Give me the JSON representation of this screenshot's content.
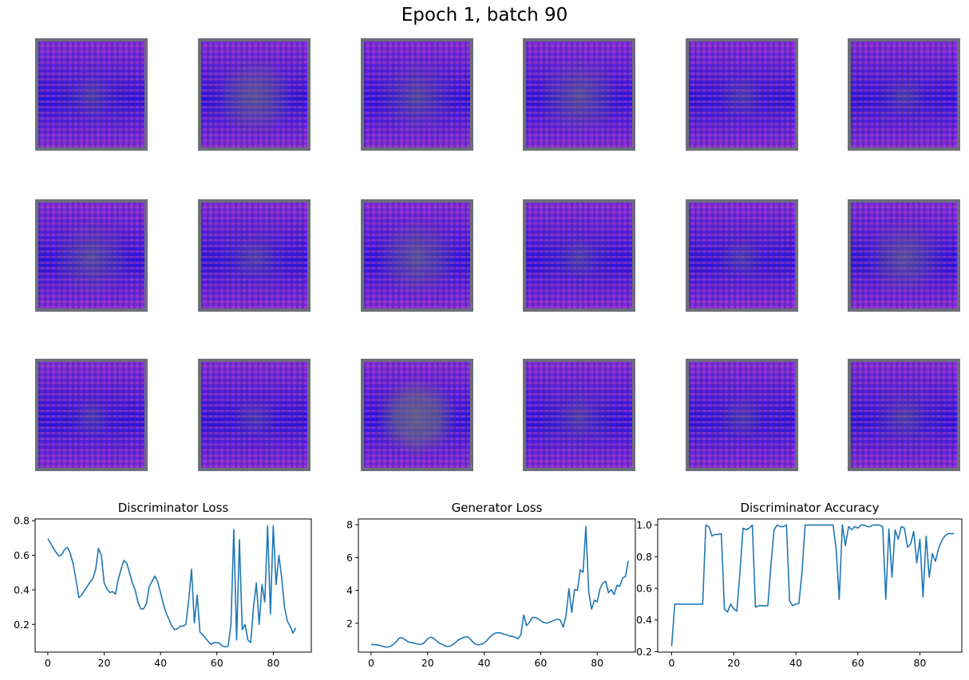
{
  "figure": {
    "title": "Epoch 1, batch 90"
  },
  "sample_grid": {
    "rows": 3,
    "cols": 6,
    "colors": {
      "frame": "#6b6f7a",
      "blob": "#6a6e7c",
      "violet": "#8a2be2",
      "blue": "#2a10e8",
      "magenta": "#b040c8",
      "dark": "#1e2a7a"
    },
    "center_blob_strength": [
      [
        0.15,
        0.55,
        0.35,
        0.45,
        0.1,
        0.1
      ],
      [
        0.4,
        0.2,
        0.5,
        0.15,
        0.1,
        0.45
      ],
      [
        0.05,
        0.05,
        0.75,
        0.2,
        0.1,
        0.2
      ]
    ]
  },
  "chart_data": [
    {
      "type": "line",
      "title": "Discriminator Loss",
      "xlabel": "",
      "ylabel": "",
      "xlim": [
        -4.5,
        93.5
      ],
      "ylim": [
        0.04,
        0.81
      ],
      "xticks": [
        0,
        20,
        40,
        60,
        80
      ],
      "yticks": [
        0.2,
        0.4,
        0.6,
        0.8
      ],
      "yticklabels": [
        "0.2",
        "0.4",
        "0.6",
        "0.8"
      ],
      "grid": false,
      "color": "#1f77b4",
      "y": [
        0.695,
        0.67,
        0.64,
        0.615,
        0.595,
        0.605,
        0.635,
        0.645,
        0.61,
        0.55,
        0.46,
        0.355,
        0.37,
        0.395,
        0.42,
        0.445,
        0.465,
        0.52,
        0.64,
        0.6,
        0.44,
        0.405,
        0.385,
        0.39,
        0.375,
        0.46,
        0.52,
        0.57,
        0.555,
        0.5,
        0.44,
        0.4,
        0.33,
        0.29,
        0.29,
        0.32,
        0.42,
        0.45,
        0.48,
        0.445,
        0.385,
        0.32,
        0.265,
        0.23,
        0.19,
        0.17,
        0.175,
        0.19,
        0.19,
        0.2,
        0.34,
        0.52,
        0.21,
        0.37,
        0.155,
        0.14,
        0.12,
        0.1,
        0.085,
        0.095,
        0.095,
        0.09,
        0.075,
        0.07,
        0.075,
        0.2,
        0.75,
        0.11,
        0.69,
        0.17,
        0.2,
        0.11,
        0.095,
        0.3,
        0.44,
        0.2,
        0.43,
        0.33,
        0.77,
        0.26,
        0.77,
        0.43,
        0.6,
        0.47,
        0.3,
        0.22,
        0.19,
        0.15,
        0.18
      ]
    },
    {
      "type": "line",
      "title": "Generator Loss",
      "xlabel": "",
      "ylabel": "",
      "xlim": [
        -4.5,
        93.5
      ],
      "ylim": [
        0.24,
        8.35
      ],
      "xticks": [
        0,
        20,
        40,
        60,
        80
      ],
      "yticks": [
        2,
        4,
        6,
        8
      ],
      "yticklabels": [
        "2",
        "4",
        "6",
        "8"
      ],
      "grid": false,
      "color": "#1f77b4",
      "y": [
        0.7,
        0.7,
        0.68,
        0.65,
        0.6,
        0.55,
        0.55,
        0.6,
        0.72,
        0.9,
        1.1,
        1.12,
        1.0,
        0.88,
        0.82,
        0.8,
        0.75,
        0.72,
        0.72,
        0.85,
        1.05,
        1.15,
        1.1,
        0.95,
        0.8,
        0.72,
        0.62,
        0.58,
        0.6,
        0.7,
        0.85,
        1.0,
        1.08,
        1.15,
        1.18,
        1.05,
        0.85,
        0.72,
        0.68,
        0.72,
        0.8,
        0.95,
        1.15,
        1.3,
        1.4,
        1.42,
        1.4,
        1.32,
        1.3,
        1.22,
        1.2,
        1.15,
        1.05,
        1.3,
        2.5,
        1.85,
        2.05,
        2.35,
        2.35,
        2.28,
        2.15,
        2.05,
        2.0,
        2.05,
        2.12,
        2.2,
        2.25,
        2.18,
        1.75,
        2.5,
        4.1,
        2.65,
        4.05,
        4.0,
        5.25,
        5.1,
        7.9,
        3.9,
        2.85,
        3.4,
        3.3,
        4.1,
        4.45,
        4.55,
        3.85,
        4.05,
        3.75,
        4.3,
        4.25,
        4.75,
        4.85,
        5.8
      ]
    },
    {
      "type": "line",
      "title": "Discriminator Accuracy",
      "xlabel": "",
      "ylabel": "",
      "xlim": [
        -4.5,
        93.5
      ],
      "ylim": [
        0.197,
        1.038
      ],
      "xticks": [
        0,
        20,
        40,
        60,
        80
      ],
      "yticks": [
        0.2,
        0.4,
        0.6,
        0.8,
        1.0
      ],
      "yticklabels": [
        "0.2",
        "0.4",
        "0.6",
        "0.8",
        "1.0"
      ],
      "grid": false,
      "color": "#1f77b4",
      "y": [
        0.235,
        0.5,
        0.5,
        0.5,
        0.5,
        0.5,
        0.5,
        0.5,
        0.5,
        0.5,
        0.5,
        1.0,
        0.99,
        0.93,
        0.94,
        0.94,
        0.945,
        0.47,
        0.45,
        0.5,
        0.47,
        0.455,
        0.7,
        0.98,
        0.97,
        0.98,
        1.0,
        0.48,
        0.49,
        0.49,
        0.49,
        0.49,
        0.75,
        0.97,
        1.0,
        0.99,
        0.99,
        1.0,
        0.52,
        0.49,
        0.5,
        0.505,
        0.7,
        1.0,
        1.0,
        1.0,
        1.0,
        1.0,
        1.0,
        1.0,
        1.0,
        1.0,
        1.0,
        0.85,
        0.53,
        1.0,
        0.87,
        0.99,
        0.97,
        0.99,
        0.98,
        1.0,
        1.0,
        0.99,
        0.99,
        1.0,
        1.0,
        1.0,
        0.99,
        0.53,
        0.975,
        0.67,
        0.97,
        0.91,
        0.99,
        0.98,
        0.86,
        0.88,
        0.96,
        0.76,
        0.91,
        0.545,
        0.93,
        0.67,
        0.82,
        0.77,
        0.85,
        0.9,
        0.93,
        0.945,
        0.945,
        0.945
      ]
    }
  ]
}
